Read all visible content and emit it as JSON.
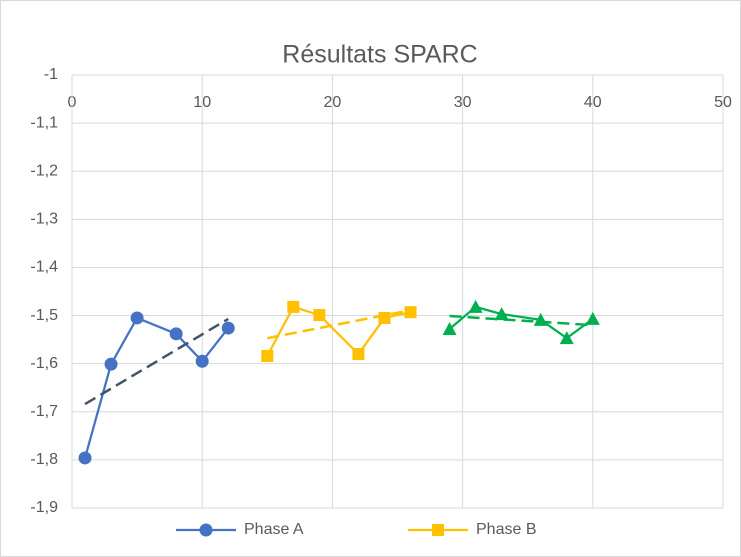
{
  "chart_data": {
    "type": "line",
    "title": "Résultats SPARC",
    "xlim": [
      0,
      50
    ],
    "xticks": [
      0,
      10,
      20,
      30,
      40,
      50
    ],
    "ylim": [
      -1.9,
      -1
    ],
    "yticks": [
      -1,
      {
        "value": -1.1,
        "label": "-1,1"
      },
      {
        "value": -1.2,
        "label": "-1,2"
      },
      {
        "value": -1.3,
        "label": "-1,3"
      },
      {
        "value": -1.4,
        "label": "-1,4"
      },
      {
        "value": -1.5,
        "label": "-1,5"
      },
      {
        "value": -1.6,
        "label": "-1,6"
      },
      {
        "value": -1.7,
        "label": "-1,7"
      },
      {
        "value": -1.8,
        "label": "-1,8"
      },
      {
        "value": -1.9,
        "label": "-1,9"
      }
    ],
    "grid": true,
    "legend": "bottom",
    "series": [
      {
        "name": "Phase A",
        "color": "#4472c4",
        "marker": "circle",
        "x": [
          1,
          3,
          5,
          8,
          10,
          12
        ],
        "values": [
          -1.796,
          -1.601,
          -1.505,
          -1.538,
          -1.595,
          -1.526
        ]
      },
      {
        "name": "Phase B",
        "color": "#ffc000",
        "marker": "square",
        "x": [
          15,
          17,
          19,
          22,
          24,
          26
        ],
        "values": [
          -1.584,
          -1.482,
          -1.499,
          -1.58,
          -1.505,
          -1.493
        ]
      },
      {
        "color": "#00b050",
        "marker": "triangle",
        "x": [
          29,
          31,
          33,
          36,
          38,
          40
        ],
        "values": [
          -1.528,
          -1.482,
          -1.497,
          -1.509,
          -1.547,
          -1.507
        ]
      },
      {
        "color": "#44546a",
        "dashed": true,
        "x": [
          1,
          12
        ],
        "values": [
          -1.684,
          -1.507
        ]
      },
      {
        "color": "#ffc000",
        "dashed": true,
        "x": [
          15,
          26
        ],
        "values": [
          -1.547,
          -1.489
        ]
      },
      {
        "color": "#00b050",
        "dashed": true,
        "x": [
          29,
          40
        ],
        "values": [
          -1.501,
          -1.52
        ]
      }
    ]
  }
}
